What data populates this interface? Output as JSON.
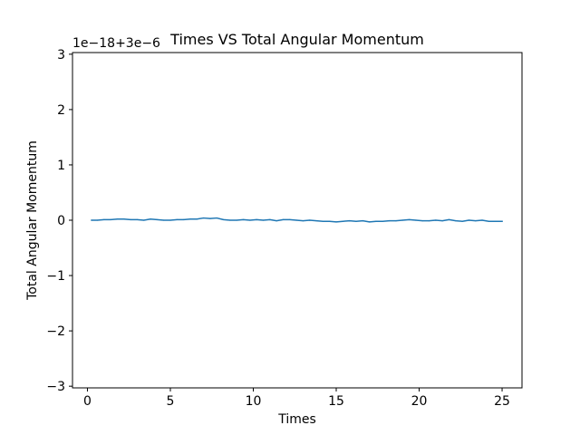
{
  "chart_data": {
    "type": "line",
    "title": "Times VS Total Angular Momentum",
    "xlabel": "Times",
    "ylabel": "Total Angular Momentum",
    "offset_label": "1e−18+3e−6",
    "xlim": [
      -0.9,
      26.2
    ],
    "ylim": [
      -3.03,
      3.03
    ],
    "xticks": [
      0,
      5,
      10,
      15,
      20,
      25
    ],
    "xtick_labels": [
      "0",
      "5",
      "10",
      "15",
      "20",
      "25"
    ],
    "yticks": [
      -3,
      -2,
      -1,
      0,
      1,
      2,
      3
    ],
    "ytick_labels": [
      "−3",
      "−2",
      "−1",
      "0",
      "1",
      "2",
      "3"
    ],
    "grid": false,
    "series": [
      {
        "color": "#1f77b4",
        "x": [
          0.25,
          0.6,
          1.0,
          1.4,
          1.8,
          2.2,
          2.6,
          3.0,
          3.4,
          3.8,
          4.2,
          4.6,
          5.0,
          5.4,
          5.8,
          6.2,
          6.6,
          7.0,
          7.4,
          7.8,
          8.2,
          8.6,
          9.0,
          9.4,
          9.8,
          10.2,
          10.6,
          11.0,
          11.4,
          11.8,
          12.2,
          12.6,
          13.0,
          13.4,
          13.8,
          14.2,
          14.6,
          15.0,
          15.4,
          15.8,
          16.2,
          16.6,
          17.0,
          17.4,
          17.8,
          18.2,
          18.6,
          19.0,
          19.4,
          19.8,
          20.2,
          20.6,
          21.0,
          21.4,
          21.8,
          22.2,
          22.6,
          23.0,
          23.4,
          23.8,
          24.2,
          24.6,
          25.0
        ],
        "y": [
          0.0,
          0.0,
          0.01,
          0.01,
          0.02,
          0.02,
          0.01,
          0.01,
          0.0,
          0.02,
          0.01,
          0.0,
          0.0,
          0.01,
          0.01,
          0.02,
          0.02,
          0.04,
          0.03,
          0.04,
          0.01,
          0.0,
          0.0,
          0.01,
          0.0,
          0.01,
          0.0,
          0.01,
          -0.01,
          0.01,
          0.01,
          0.0,
          -0.01,
          0.0,
          -0.01,
          -0.02,
          -0.02,
          -0.03,
          -0.02,
          -0.01,
          -0.02,
          -0.01,
          -0.03,
          -0.02,
          -0.02,
          -0.01,
          -0.01,
          0.0,
          0.01,
          0.0,
          -0.01,
          -0.01,
          0.0,
          -0.01,
          0.01,
          -0.01,
          -0.02,
          0.0,
          -0.01,
          0.0,
          -0.02,
          -0.02,
          -0.02
        ]
      }
    ]
  }
}
